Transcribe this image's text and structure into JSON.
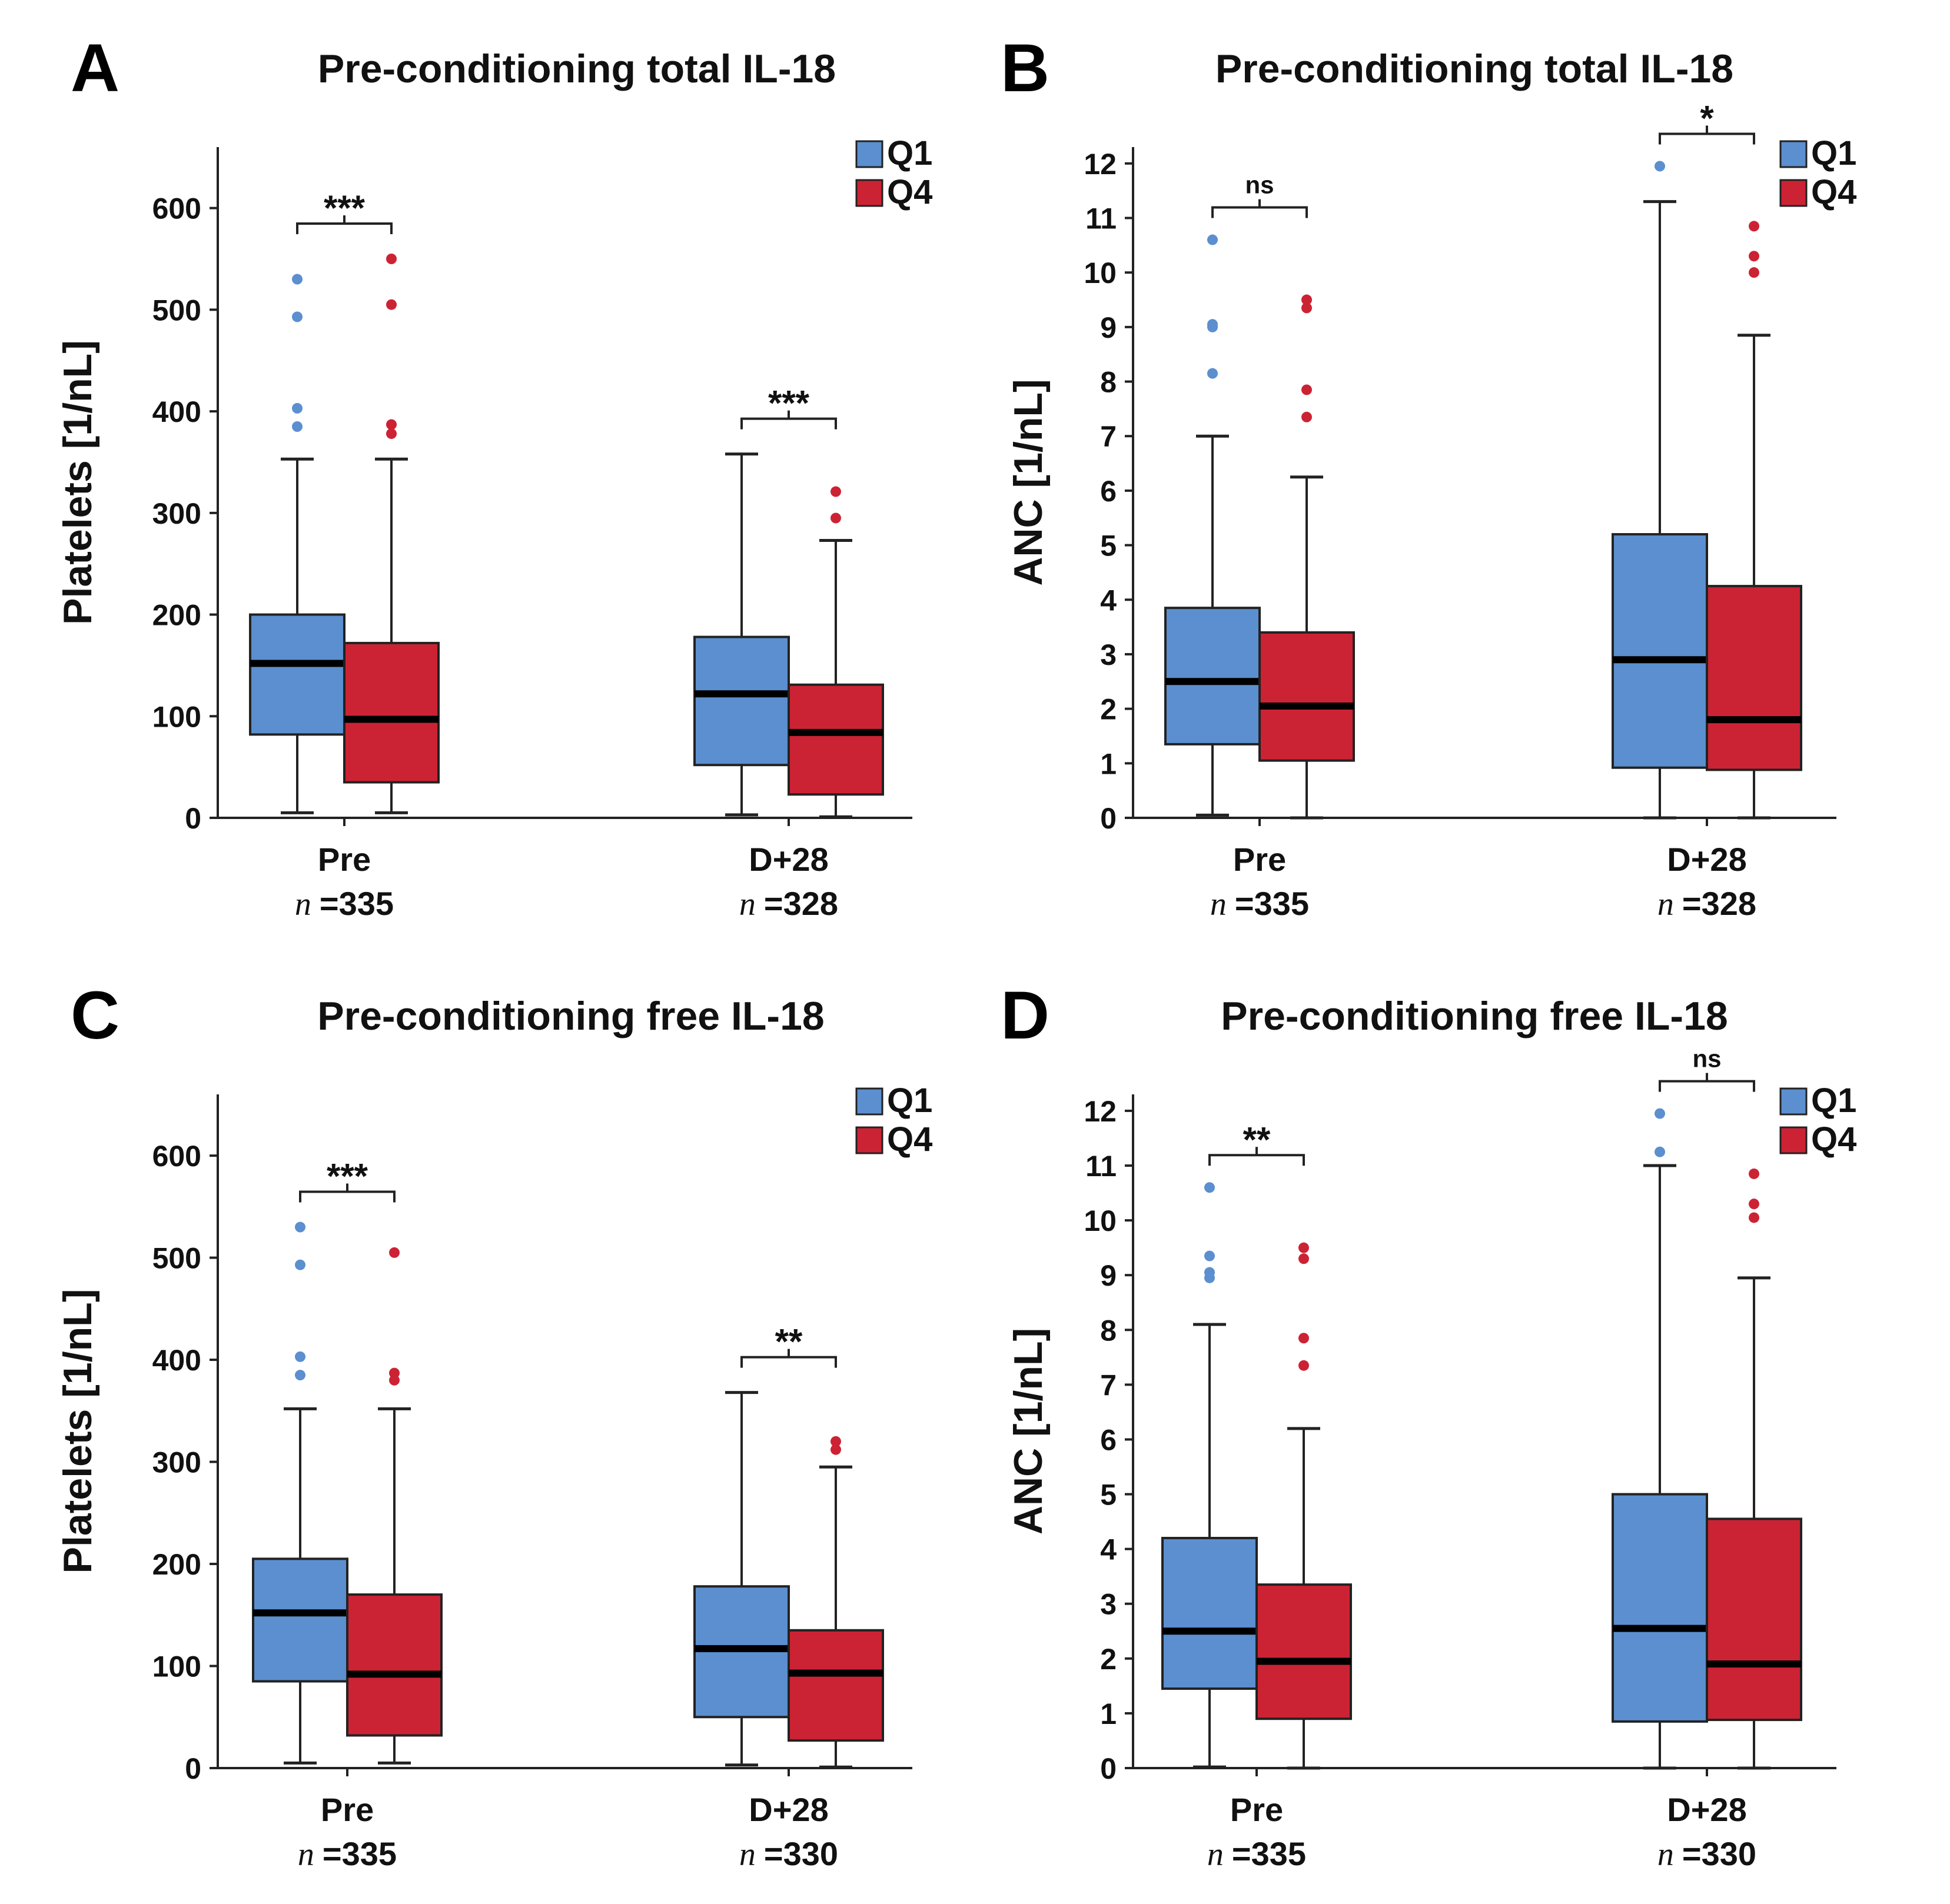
{
  "chart_data": [
    {
      "panel": "A",
      "type": "boxplot",
      "title": "Pre-conditioning total IL-18",
      "ylabel": "Platelets [1/nL]",
      "ylim": [
        0,
        660
      ],
      "yticks": [
        0,
        100,
        200,
        300,
        400,
        500,
        600
      ],
      "legend": [
        {
          "name": "Q1",
          "color": "#5b8fcf"
        },
        {
          "name": "Q4",
          "color": "#cc2334"
        }
      ],
      "legend_position": "top-right",
      "categories": [
        {
          "label": "Pre",
          "n_prefix": "n =",
          "n_value": "335",
          "significance": "***",
          "boxes": [
            {
              "series": "Q1",
              "whisker_low": 5,
              "q1": 82,
              "median": 152,
              "q3": 200,
              "whisker_high": 353,
              "outliers": [
                385,
                403,
                493,
                530
              ]
            },
            {
              "series": "Q4",
              "whisker_low": 5,
              "q1": 35,
              "median": 97,
              "q3": 172,
              "whisker_high": 353,
              "outliers": [
                378,
                387,
                505,
                550
              ]
            }
          ]
        },
        {
          "label": "D+28",
          "n_prefix": "n =",
          "n_value": "328",
          "significance": "***",
          "boxes": [
            {
              "series": "Q1",
              "whisker_low": 3,
              "q1": 52,
              "median": 122,
              "q3": 178,
              "whisker_high": 358,
              "outliers": []
            },
            {
              "series": "Q4",
              "whisker_low": 1,
              "q1": 23,
              "median": 84,
              "q3": 131,
              "whisker_high": 273,
              "outliers": [
                295,
                321
              ]
            }
          ]
        }
      ]
    },
    {
      "panel": "B",
      "type": "boxplot",
      "title": "Pre-conditioning total IL-18",
      "ylabel": "ANC [1/nL]",
      "ylim": [
        0,
        12.3
      ],
      "yticks": [
        0,
        1,
        2,
        3,
        4,
        5,
        6,
        7,
        8,
        9,
        10,
        11,
        12
      ],
      "legend": [
        {
          "name": "Q1",
          "color": "#5b8fcf"
        },
        {
          "name": "Q4",
          "color": "#cc2334"
        }
      ],
      "legend_position": "top-right",
      "categories": [
        {
          "label": "Pre",
          "n_prefix": "n =",
          "n_value": "335",
          "significance": "ns",
          "boxes": [
            {
              "series": "Q1",
              "whisker_low": 0.05,
              "q1": 1.35,
              "median": 2.5,
              "q3": 3.85,
              "whisker_high": 7.0,
              "outliers": [
                8.15,
                9.0,
                9.05,
                10.6
              ]
            },
            {
              "series": "Q4",
              "whisker_low": 0.0,
              "q1": 1.05,
              "median": 2.05,
              "q3": 3.4,
              "whisker_high": 6.25,
              "outliers": [
                7.35,
                7.85,
                9.35,
                9.5
              ]
            }
          ]
        },
        {
          "label": "D+28",
          "n_prefix": "n =",
          "n_value": "328",
          "significance": "*",
          "boxes": [
            {
              "series": "Q1",
              "whisker_low": 0.0,
              "q1": 0.92,
              "median": 2.9,
              "q3": 5.2,
              "whisker_high": 11.3,
              "outliers": [
                11.95
              ]
            },
            {
              "series": "Q4",
              "whisker_low": 0.0,
              "q1": 0.88,
              "median": 1.8,
              "q3": 4.25,
              "whisker_high": 8.85,
              "outliers": [
                10.0,
                10.3,
                10.85
              ]
            }
          ]
        }
      ]
    },
    {
      "panel": "C",
      "type": "boxplot",
      "title": "Pre-conditioning free IL-18",
      "ylabel": "Platelets [1/nL]",
      "ylim": [
        0,
        660
      ],
      "yticks": [
        0,
        100,
        200,
        300,
        400,
        500,
        600
      ],
      "legend": [
        {
          "name": "Q1",
          "color": "#5b8fcf"
        },
        {
          "name": "Q4",
          "color": "#cc2334"
        }
      ],
      "legend_position": "top-right",
      "categories": [
        {
          "label": "Pre",
          "n_prefix": "n =",
          "n_value": "335",
          "significance": "***",
          "boxes": [
            {
              "series": "Q1",
              "whisker_low": 5,
              "q1": 85,
              "median": 152,
              "q3": 205,
              "whisker_high": 352,
              "outliers": [
                385,
                403,
                493,
                530
              ]
            },
            {
              "series": "Q4",
              "whisker_low": 5,
              "q1": 32,
              "median": 92,
              "q3": 170,
              "whisker_high": 352,
              "outliers": [
                380,
                387,
                505
              ]
            }
          ]
        },
        {
          "label": "D+28",
          "n_prefix": "n =",
          "n_value": "330",
          "significance": "**",
          "boxes": [
            {
              "series": "Q1",
              "whisker_low": 3,
              "q1": 50,
              "median": 117,
              "q3": 178,
              "whisker_high": 368,
              "outliers": []
            },
            {
              "series": "Q4",
              "whisker_low": 1,
              "q1": 27,
              "median": 93,
              "q3": 135,
              "whisker_high": 295,
              "outliers": [
                312,
                320
              ]
            }
          ]
        }
      ]
    },
    {
      "panel": "D",
      "type": "boxplot",
      "title": "Pre-conditioning free IL-18",
      "ylabel": "ANC [1/nL]",
      "ylim": [
        0,
        12.3
      ],
      "yticks": [
        0,
        1,
        2,
        3,
        4,
        5,
        6,
        7,
        8,
        9,
        10,
        11,
        12
      ],
      "legend": [
        {
          "name": "Q1",
          "color": "#5b8fcf"
        },
        {
          "name": "Q4",
          "color": "#cc2334"
        }
      ],
      "legend_position": "top-right",
      "categories": [
        {
          "label": "Pre",
          "n_prefix": "n =",
          "n_value": "335",
          "significance": "**",
          "boxes": [
            {
              "series": "Q1",
              "whisker_low": 0.02,
              "q1": 1.45,
              "median": 2.5,
              "q3": 4.2,
              "whisker_high": 8.1,
              "outliers": [
                8.95,
                9.05,
                9.35,
                10.6
              ]
            },
            {
              "series": "Q4",
              "whisker_low": 0.0,
              "q1": 0.9,
              "median": 1.95,
              "q3": 3.35,
              "whisker_high": 6.2,
              "outliers": [
                7.35,
                7.85,
                9.3,
                9.5
              ]
            }
          ]
        },
        {
          "label": "D+28",
          "n_prefix": "n =",
          "n_value": "330",
          "significance": "ns",
          "boxes": [
            {
              "series": "Q1",
              "whisker_low": 0.0,
              "q1": 0.85,
              "median": 2.55,
              "q3": 5.0,
              "whisker_high": 11.0,
              "outliers": [
                11.25,
                11.95
              ]
            },
            {
              "series": "Q4",
              "whisker_low": 0.0,
              "q1": 0.88,
              "median": 1.9,
              "q3": 4.55,
              "whisker_high": 8.95,
              "outliers": [
                10.05,
                10.3,
                10.85
              ]
            }
          ]
        }
      ]
    }
  ]
}
